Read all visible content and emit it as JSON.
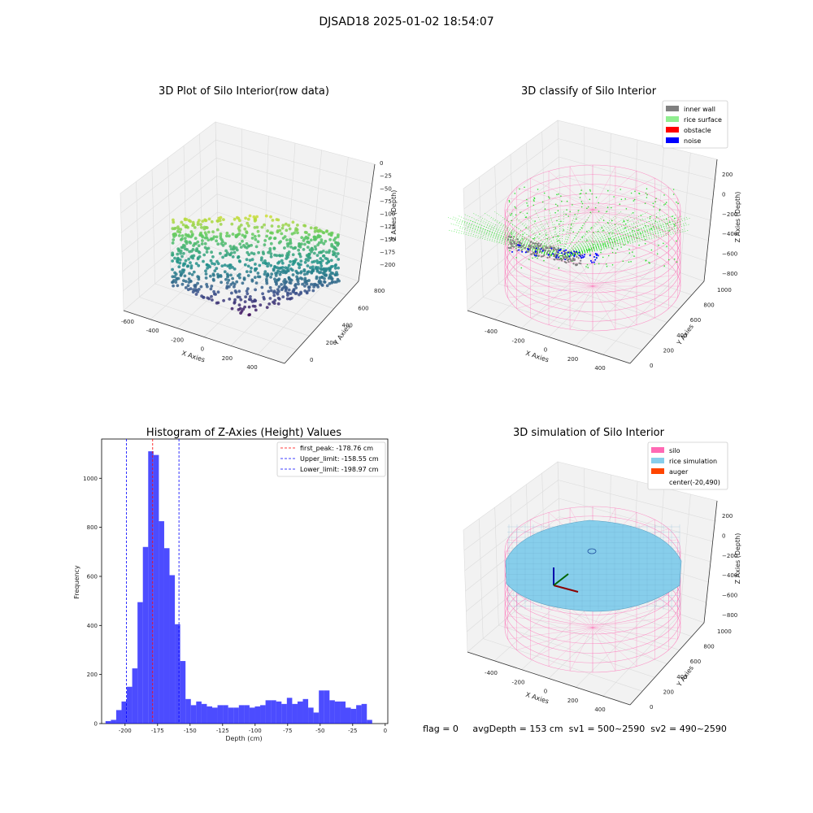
{
  "suptitle": "DJSAD18 2025-01-02 18:54:07",
  "footer": "flag = 0     avgDepth = 153 cm  sv1 = 500~2590  sv2 = 490~2590",
  "panels": {
    "raw": {
      "title": "3D Plot of Silo Interior(row data)",
      "xlabel": "X Axies",
      "ylabel": "Y Axies",
      "zlabel": "Z Axies (Depth)",
      "xticks": [
        "-600",
        "-400",
        "-200",
        "0",
        "200",
        "400"
      ],
      "yticks": [
        "0",
        "200",
        "400",
        "600",
        "800"
      ],
      "zticks": [
        "0",
        "−25",
        "−50",
        "−75",
        "−100",
        "−125",
        "−150",
        "−175",
        "−200"
      ],
      "colormap": "viridis"
    },
    "classify": {
      "title": "3D classify of Silo Interior",
      "xlabel": "X Axies",
      "ylabel": "Y Axies",
      "zlabel": "Z Axies (Depth)",
      "xticks": [
        "-400",
        "-200",
        "0",
        "200",
        "400"
      ],
      "yticks": [
        "0",
        "200",
        "400",
        "600",
        "800",
        "1000"
      ],
      "zticks": [
        "200",
        "0",
        "−200",
        "−400",
        "−600",
        "−800"
      ],
      "legend": [
        {
          "label": "inner wall",
          "color": "#808080"
        },
        {
          "label": "rice surface",
          "color": "#90ee90"
        },
        {
          "label": "obstacle",
          "color": "#ff0000"
        },
        {
          "label": "noise",
          "color": "#0000ff"
        }
      ]
    },
    "simulation": {
      "title": "3D simulation of Silo Interior",
      "xlabel": "X Axies",
      "ylabel": "Y Axies",
      "zlabel": "Z Axies (Depth)",
      "xticks": [
        "-400",
        "-200",
        "0",
        "200",
        "400"
      ],
      "yticks": [
        "0",
        "200",
        "400",
        "600",
        "800",
        "1000"
      ],
      "zticks": [
        "200",
        "0",
        "−200",
        "−400",
        "−600",
        "−800"
      ],
      "legend": [
        {
          "label": "silo",
          "color": "#ff69b4"
        },
        {
          "label": "rice simulation",
          "color": "#87ceeb"
        },
        {
          "label": "auger",
          "color": "#ff4500"
        },
        {
          "label": "center(-20,490)",
          "color": ""
        }
      ]
    }
  },
  "chart_data": {
    "type": "bar",
    "title": "Histogram of Z-Axies (Height) Values",
    "xlabel": "Depth (cm)",
    "ylabel": "Frequency",
    "xlim": [
      -218,
      2
    ],
    "ylim": [
      0,
      1160
    ],
    "xticks": [
      "-200",
      "-175",
      "-150",
      "-125",
      "-100",
      "-75",
      "-50",
      "-25",
      "0"
    ],
    "yticks": [
      "0",
      "200",
      "400",
      "600",
      "800",
      "1000"
    ],
    "bin_start": -215,
    "bin_width": 4.1,
    "values": [
      10,
      15,
      55,
      90,
      150,
      225,
      495,
      720,
      1110,
      1095,
      825,
      715,
      605,
      405,
      255,
      100,
      75,
      90,
      80,
      70,
      65,
      75,
      75,
      65,
      65,
      75,
      75,
      65,
      70,
      75,
      95,
      95,
      90,
      80,
      105,
      80,
      90,
      100,
      65,
      45,
      135,
      135,
      95,
      90,
      90,
      65,
      60,
      75,
      80,
      15
    ],
    "bar_color": "#0000ff",
    "lines": [
      {
        "label": "first_peak: -178.76 cm",
        "x": -178.76,
        "color": "#ff0000"
      },
      {
        "label": "Upper_limit: -158.55 cm",
        "x": -158.55,
        "color": "#0000ff"
      },
      {
        "label": "Lower_limit: -198.97 cm",
        "x": -198.97,
        "color": "#0000ff"
      }
    ]
  }
}
